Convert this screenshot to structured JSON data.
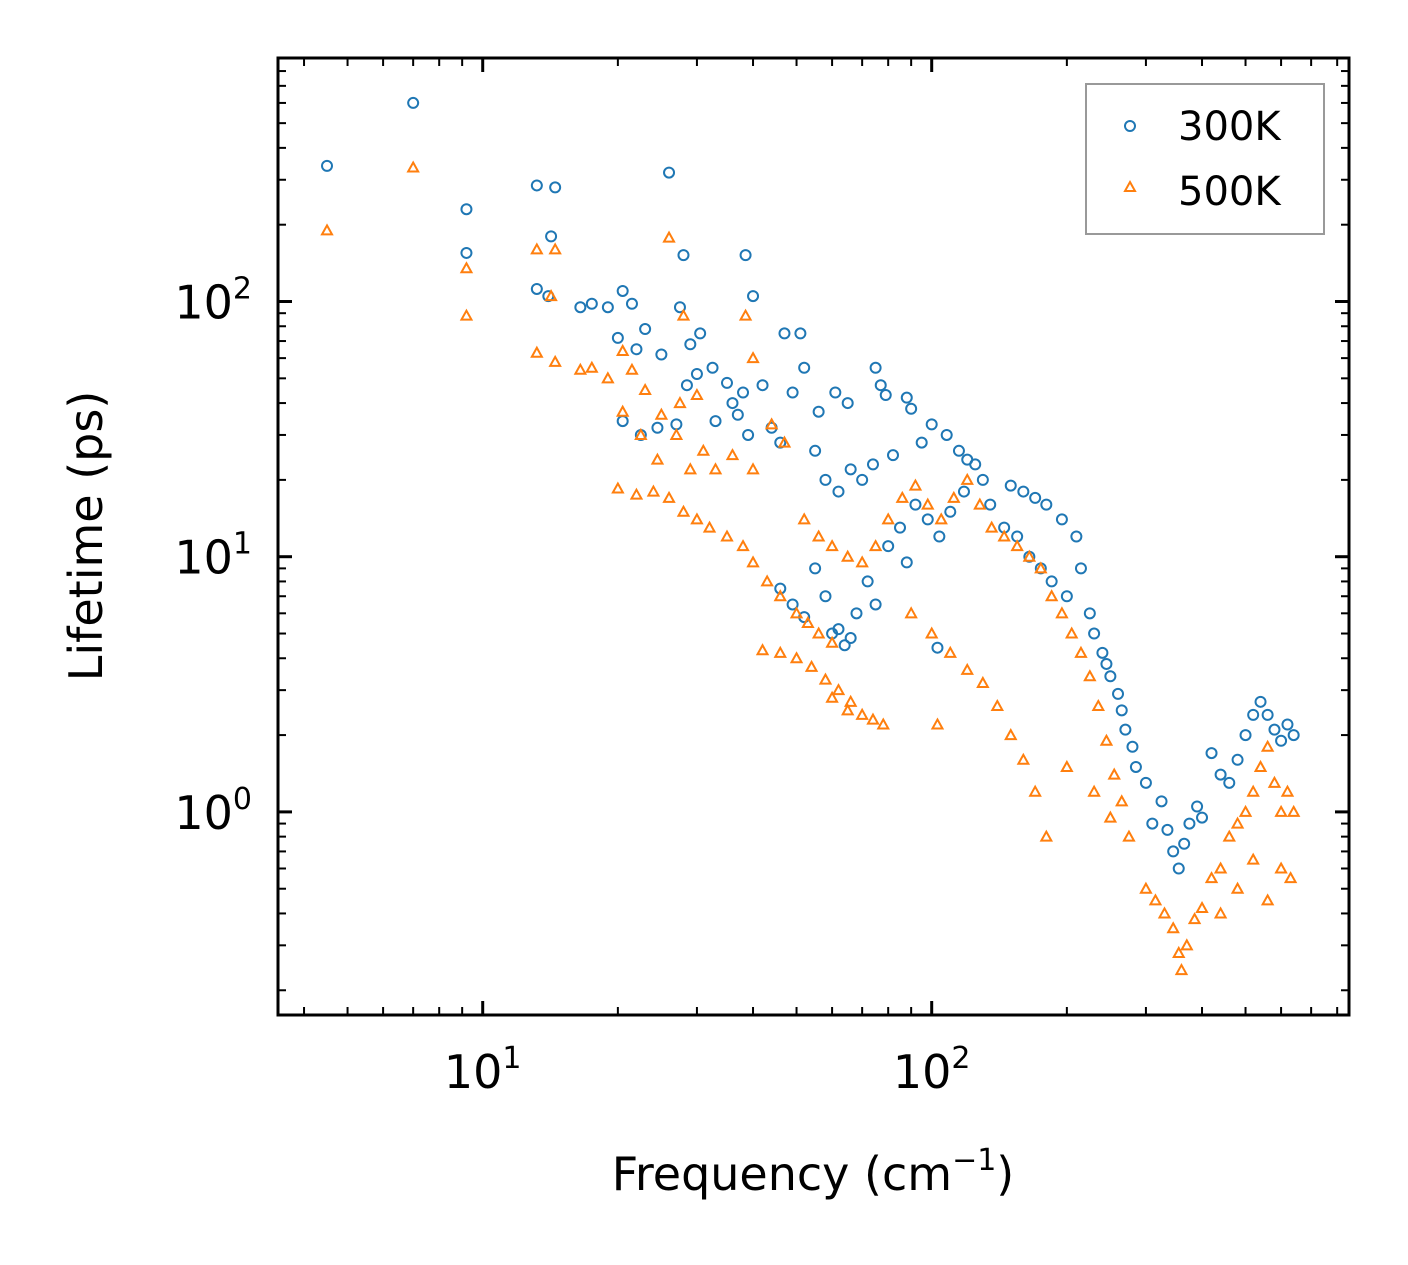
{
  "chart_data": {
    "type": "scatter",
    "title": "",
    "xlabel": "Frequency (cm",
    "xlabel_sup": "−1",
    "xlabel_end": ")",
    "ylabel": "Lifetime (ps)",
    "xscale": "log",
    "yscale": "log",
    "xlim": [
      3.5,
      850
    ],
    "ylim": [
      0.16,
      900
    ],
    "x_ticks": [
      {
        "value": 10,
        "base": "10",
        "exp": "1"
      },
      {
        "value": 100,
        "base": "10",
        "exp": "2"
      }
    ],
    "y_ticks": [
      {
        "value": 1,
        "base": "10",
        "exp": "0"
      },
      {
        "value": 10,
        "base": "10",
        "exp": "1"
      },
      {
        "value": 100,
        "base": "10",
        "exp": "2"
      }
    ],
    "legend_position": "top-right",
    "series": [
      {
        "name": "300K",
        "marker": "circle",
        "color": "#1f77b4",
        "points": [
          [
            4.5,
            340
          ],
          [
            7.0,
            600
          ],
          [
            9.2,
            230
          ],
          [
            9.2,
            155
          ],
          [
            13.2,
            285
          ],
          [
            14.5,
            280
          ],
          [
            13.2,
            112
          ],
          [
            14.2,
            180
          ],
          [
            14.0,
            105
          ],
          [
            26.0,
            320
          ],
          [
            28.0,
            152
          ],
          [
            38.5,
            152
          ],
          [
            40.0,
            105
          ],
          [
            16.5,
            95
          ],
          [
            17.5,
            98
          ],
          [
            19.0,
            95
          ],
          [
            20.5,
            110
          ],
          [
            21.5,
            98
          ],
          [
            20.0,
            72
          ],
          [
            22.0,
            65
          ],
          [
            23.0,
            78
          ],
          [
            25.0,
            62
          ],
          [
            27.5,
            95
          ],
          [
            29.0,
            68
          ],
          [
            30.5,
            75
          ],
          [
            32.5,
            55
          ],
          [
            35.0,
            48
          ],
          [
            36.0,
            40
          ],
          [
            38.0,
            44
          ],
          [
            42.0,
            47
          ],
          [
            47.0,
            75
          ],
          [
            51.0,
            75
          ],
          [
            49.0,
            44
          ],
          [
            52.0,
            55
          ],
          [
            56.0,
            37
          ],
          [
            61.0,
            44
          ],
          [
            65.0,
            40
          ],
          [
            75.0,
            55
          ],
          [
            77.0,
            47
          ],
          [
            79.0,
            43
          ],
          [
            88.0,
            42
          ],
          [
            90.0,
            38
          ],
          [
            20.5,
            34
          ],
          [
            22.5,
            30
          ],
          [
            24.5,
            32
          ],
          [
            27.0,
            33
          ],
          [
            28.5,
            47
          ],
          [
            30.0,
            52
          ],
          [
            33.0,
            34
          ],
          [
            37.0,
            36
          ],
          [
            39.0,
            30
          ],
          [
            44.0,
            32
          ],
          [
            46.0,
            28
          ],
          [
            55.0,
            26
          ],
          [
            58.0,
            20
          ],
          [
            62.0,
            18
          ],
          [
            66.0,
            22
          ],
          [
            70.0,
            20
          ],
          [
            74.0,
            23
          ],
          [
            82.0,
            25
          ],
          [
            95.0,
            28
          ],
          [
            100.0,
            33
          ],
          [
            108.0,
            30
          ],
          [
            115.0,
            26
          ],
          [
            120.0,
            24
          ],
          [
            125.0,
            23
          ],
          [
            130.0,
            20
          ],
          [
            150.0,
            19
          ],
          [
            160.0,
            18
          ],
          [
            170.0,
            17
          ],
          [
            180.0,
            16
          ],
          [
            195.0,
            14
          ],
          [
            210.0,
            12
          ],
          [
            215.0,
            9
          ],
          [
            225.0,
            6
          ],
          [
            240.0,
            4.2
          ],
          [
            250.0,
            3.4
          ],
          [
            265.0,
            2.5
          ],
          [
            280.0,
            1.8
          ],
          [
            300.0,
            1.3
          ],
          [
            310.0,
            0.9
          ],
          [
            325.0,
            1.1
          ],
          [
            335.0,
            0.85
          ],
          [
            345.0,
            0.7
          ],
          [
            355.0,
            0.6
          ],
          [
            365.0,
            0.75
          ],
          [
            375.0,
            0.9
          ],
          [
            390.0,
            1.05
          ],
          [
            400.0,
            0.95
          ],
          [
            420.0,
            1.7
          ],
          [
            440.0,
            1.4
          ],
          [
            460.0,
            1.3
          ],
          [
            480.0,
            1.6
          ],
          [
            500.0,
            2.0
          ],
          [
            520.0,
            2.4
          ],
          [
            540.0,
            2.7
          ],
          [
            560.0,
            2.4
          ],
          [
            580.0,
            2.1
          ],
          [
            600.0,
            1.9
          ],
          [
            620.0,
            2.2
          ],
          [
            640.0,
            2.0
          ],
          [
            55.0,
            9
          ],
          [
            58.0,
            7
          ],
          [
            60.0,
            5
          ],
          [
            64.0,
            4.5
          ],
          [
            68.0,
            6
          ],
          [
            72.0,
            8
          ],
          [
            80.0,
            11
          ],
          [
            85.0,
            13
          ],
          [
            92.0,
            16
          ],
          [
            98.0,
            14
          ],
          [
            104.0,
            12
          ],
          [
            110.0,
            15
          ],
          [
            118.0,
            18
          ],
          [
            135.0,
            16
          ],
          [
            145.0,
            13
          ],
          [
            155.0,
            12
          ],
          [
            165.0,
            10
          ],
          [
            175.0,
            9
          ],
          [
            185.0,
            8
          ],
          [
            200.0,
            7
          ],
          [
            230.0,
            5
          ],
          [
            245.0,
            3.8
          ],
          [
            260.0,
            2.9
          ],
          [
            270.0,
            2.1
          ],
          [
            285.0,
            1.5
          ],
          [
            46.0,
            7.5
          ],
          [
            49.0,
            6.5
          ],
          [
            52.0,
            5.8
          ],
          [
            62.0,
            5.2
          ],
          [
            66.0,
            4.8
          ],
          [
            75.0,
            6.5
          ],
          [
            88.0,
            9.5
          ],
          [
            103.0,
            4.4
          ]
        ]
      },
      {
        "name": "500K",
        "marker": "triangle",
        "color": "#ff7f0e",
        "points": [
          [
            4.5,
            190
          ],
          [
            7.0,
            335
          ],
          [
            9.2,
            135
          ],
          [
            9.2,
            88
          ],
          [
            13.2,
            160
          ],
          [
            14.5,
            160
          ],
          [
            14.2,
            105
          ],
          [
            13.2,
            63
          ],
          [
            14.5,
            58
          ],
          [
            26.0,
            178
          ],
          [
            28.0,
            88
          ],
          [
            38.5,
            88
          ],
          [
            40.0,
            60
          ],
          [
            16.5,
            54
          ],
          [
            17.5,
            55
          ],
          [
            19.0,
            50
          ],
          [
            20.5,
            64
          ],
          [
            21.5,
            54
          ],
          [
            23.0,
            45
          ],
          [
            25.0,
            36
          ],
          [
            27.5,
            40
          ],
          [
            30.0,
            43
          ],
          [
            20.5,
            37
          ],
          [
            22.5,
            30
          ],
          [
            24.5,
            24
          ],
          [
            27.0,
            30
          ],
          [
            29.0,
            22
          ],
          [
            31.0,
            26
          ],
          [
            33.0,
            22
          ],
          [
            36.0,
            25
          ],
          [
            40.0,
            22
          ],
          [
            44.0,
            33
          ],
          [
            47.0,
            28
          ],
          [
            20.0,
            18.5
          ],
          [
            22.0,
            17.5
          ],
          [
            24.0,
            18.0
          ],
          [
            26.0,
            17.0
          ],
          [
            28.0,
            15.0
          ],
          [
            30.0,
            14.0
          ],
          [
            32.0,
            13.0
          ],
          [
            35.0,
            12.0
          ],
          [
            38.0,
            11.0
          ],
          [
            40.0,
            9.5
          ],
          [
            43.0,
            8.0
          ],
          [
            46.0,
            7.0
          ],
          [
            50.0,
            6.0
          ],
          [
            53.0,
            5.5
          ],
          [
            56.0,
            5.0
          ],
          [
            60.0,
            4.6
          ],
          [
            42.0,
            4.3
          ],
          [
            46.0,
            4.2
          ],
          [
            50.0,
            4.0
          ],
          [
            54.0,
            3.7
          ],
          [
            58.0,
            3.3
          ],
          [
            62.0,
            3.0
          ],
          [
            66.0,
            2.7
          ],
          [
            70.0,
            2.4
          ],
          [
            74.0,
            2.3
          ],
          [
            78.0,
            2.2
          ],
          [
            103.0,
            2.2
          ],
          [
            60.0,
            2.8
          ],
          [
            65.0,
            2.5
          ],
          [
            52.0,
            14
          ],
          [
            56.0,
            12
          ],
          [
            60.0,
            11
          ],
          [
            65.0,
            10
          ],
          [
            70.0,
            9.5
          ],
          [
            75.0,
            11
          ],
          [
            80.0,
            14
          ],
          [
            86.0,
            17
          ],
          [
            92.0,
            19
          ],
          [
            98.0,
            16
          ],
          [
            105.0,
            14
          ],
          [
            112.0,
            17
          ],
          [
            120.0,
            20
          ],
          [
            128.0,
            16
          ],
          [
            136.0,
            13
          ],
          [
            145.0,
            12
          ],
          [
            155.0,
            11
          ],
          [
            165.0,
            10
          ],
          [
            175.0,
            9
          ],
          [
            185.0,
            7
          ],
          [
            195.0,
            6
          ],
          [
            205.0,
            5
          ],
          [
            215.0,
            4.2
          ],
          [
            225.0,
            3.4
          ],
          [
            235.0,
            2.6
          ],
          [
            245.0,
            1.9
          ],
          [
            255.0,
            1.4
          ],
          [
            265.0,
            1.1
          ],
          [
            275.0,
            0.8
          ],
          [
            250.0,
            0.95
          ],
          [
            230.0,
            1.2
          ],
          [
            200.0,
            1.5
          ],
          [
            180.0,
            0.8
          ],
          [
            170.0,
            1.2
          ],
          [
            160.0,
            1.6
          ],
          [
            150.0,
            2.0
          ],
          [
            140.0,
            2.6
          ],
          [
            130.0,
            3.2
          ],
          [
            120.0,
            3.6
          ],
          [
            110.0,
            4.2
          ],
          [
            100.0,
            5.0
          ],
          [
            90.0,
            6.0
          ],
          [
            300.0,
            0.5
          ],
          [
            315.0,
            0.45
          ],
          [
            330.0,
            0.4
          ],
          [
            345.0,
            0.35
          ],
          [
            355.0,
            0.28
          ],
          [
            360.0,
            0.24
          ],
          [
            370.0,
            0.3
          ],
          [
            385.0,
            0.38
          ],
          [
            400.0,
            0.42
          ],
          [
            420.0,
            0.55
          ],
          [
            440.0,
            0.6
          ],
          [
            460.0,
            0.8
          ],
          [
            480.0,
            0.9
          ],
          [
            500.0,
            1.0
          ],
          [
            520.0,
            1.2
          ],
          [
            540.0,
            1.5
          ],
          [
            560.0,
            1.8
          ],
          [
            580.0,
            1.3
          ],
          [
            600.0,
            1.0
          ],
          [
            620.0,
            1.2
          ],
          [
            640.0,
            1.0
          ],
          [
            560.0,
            0.45
          ],
          [
            600.0,
            0.6
          ],
          [
            630.0,
            0.55
          ],
          [
            520.0,
            0.65
          ],
          [
            480.0,
            0.5
          ],
          [
            440.0,
            0.4
          ]
        ]
      }
    ]
  }
}
